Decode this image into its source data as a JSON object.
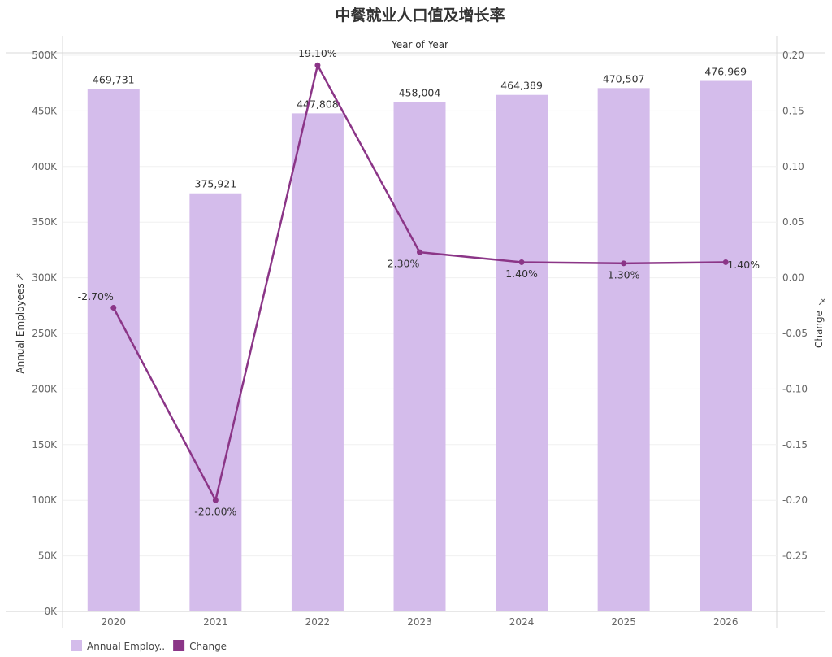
{
  "chart_data": {
    "type": "bar",
    "title": "中餐就业人口值及增长率",
    "header": "Year of Year",
    "categories": [
      "2020",
      "2021",
      "2022",
      "2023",
      "2024",
      "2025",
      "2026"
    ],
    "series": [
      {
        "name": "Annual Employees",
        "axis": "left",
        "type": "bar",
        "values": [
          469731,
          375921,
          447808,
          458004,
          464389,
          470507,
          476969
        ],
        "labels": [
          "469,731",
          "375,921",
          "447,808",
          "458,004",
          "464,389",
          "470,507",
          "476,969"
        ],
        "color": "#d4bceb"
      },
      {
        "name": "Change",
        "axis": "right",
        "type": "line",
        "values": [
          -0.027,
          -0.2,
          0.191,
          0.023,
          0.014,
          0.013,
          0.014
        ],
        "labels": [
          "-2.70%",
          "-20.00%",
          "19.10%",
          "2.30%",
          "1.40%",
          "1.30%",
          "1.40%"
        ],
        "color": "#8b3587"
      }
    ],
    "y_left": {
      "label": "Annual Employees",
      "ylim": [
        0,
        500000
      ],
      "ticks": [
        0,
        50000,
        100000,
        150000,
        200000,
        250000,
        300000,
        350000,
        400000,
        450000,
        500000
      ],
      "tick_labels": [
        "0K",
        "50K",
        "100K",
        "150K",
        "200K",
        "250K",
        "300K",
        "350K",
        "400K",
        "450K",
        "500K"
      ]
    },
    "y_right": {
      "label": "Change",
      "ylim": [
        -0.3,
        0.2
      ],
      "ticks": [
        -0.25,
        -0.2,
        -0.15,
        -0.1,
        -0.05,
        0,
        0.05,
        0.1,
        0.15,
        0.2
      ],
      "tick_labels": [
        "-0.25",
        "-0.20",
        "-0.15",
        "-0.10",
        "-0.05",
        "0.00",
        "0.05",
        "0.10",
        "0.15",
        "0.20"
      ]
    },
    "legend": {
      "position": "bottom-left",
      "items": [
        {
          "label": "Annual Employ..",
          "color": "#d4bceb"
        },
        {
          "label": "Change",
          "color": "#8b3587"
        }
      ]
    },
    "grid": true
  }
}
